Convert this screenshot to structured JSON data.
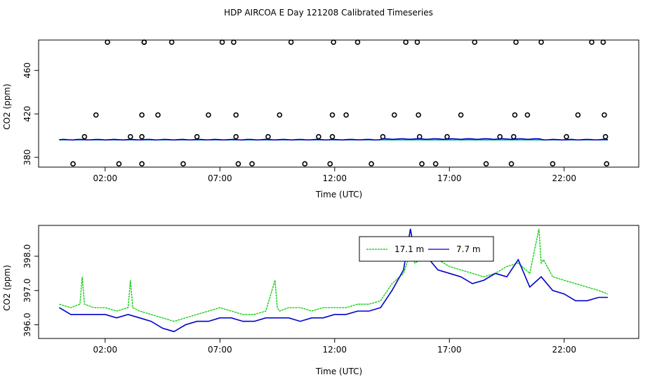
{
  "title": "HDP AIRCOA E  Day 121208  Calibrated Timeseries",
  "chart_data": [
    {
      "type": "scatter+line",
      "xlabel": "Time (UTC)",
      "ylabel": "CO2 (ppm)",
      "xticks": [
        "02:00",
        "07:00",
        "12:00",
        "17:00",
        "22:00"
      ],
      "xtick_values": [
        2,
        7,
        12,
        17,
        22
      ],
      "yticks": [
        "380",
        "420",
        "460"
      ],
      "ytick_values": [
        380,
        420,
        460
      ],
      "xlim": [
        -0.9,
        25.25
      ],
      "ylim": [
        371,
        488
      ],
      "grid": false,
      "calibration_points": {
        "x": [
          0.6,
          1.1,
          1.6,
          2.1,
          2.6,
          3.1,
          3.6,
          3.6,
          3.6,
          3.7,
          3.7,
          4.3,
          4.9,
          5.4,
          6.0,
          6.5,
          7.1,
          7.6,
          7.7,
          7.7,
          7.8,
          8.4,
          9.1,
          9.6,
          10.1,
          10.7,
          11.3,
          11.8,
          11.9,
          11.9,
          11.95,
          12.5,
          13.0,
          13.6,
          14.1,
          14.6,
          15.1,
          15.6,
          15.65,
          15.7,
          15.8,
          16.4,
          16.9,
          17.5,
          18.1,
          18.6,
          19.2,
          19.7,
          19.8,
          19.85,
          19.9,
          20.4,
          21.0,
          21.5,
          22.1,
          22.6,
          23.2,
          23.7,
          23.75,
          23.8,
          23.85
        ],
        "y": [
          374,
          399,
          419,
          486,
          374,
          399,
          374,
          399,
          419,
          486,
          486,
          419,
          486,
          374,
          399,
          419,
          486,
          486,
          419,
          399,
          374,
          374,
          399,
          419,
          486,
          374,
          399,
          374,
          399,
          419,
          486,
          419,
          486,
          374,
          399,
          419,
          486,
          486,
          419,
          399,
          374,
          374,
          399,
          419,
          486,
          374,
          399,
          374,
          399,
          419,
          486,
          419,
          486,
          374,
          399,
          419,
          486,
          486,
          419,
          399,
          374
        ]
      },
      "baseline_level": 396.3
    },
    {
      "type": "line",
      "xlabel": "Time (UTC)",
      "ylabel": "CO2 (ppm)",
      "xticks": [
        "02:00",
        "07:00",
        "12:00",
        "17:00",
        "22:00"
      ],
      "xtick_values": [
        2,
        7,
        12,
        17,
        22
      ],
      "yticks": [
        "396.0",
        "397.0",
        "398.0"
      ],
      "ytick_values": [
        396,
        397,
        398
      ],
      "xlim": [
        -0.9,
        25.25
      ],
      "ylim": [
        395.6,
        398.9
      ],
      "grid": false,
      "legend_position": "top-right",
      "series": [
        {
          "name": "17.1 m",
          "color": "#00cc00",
          "x": [
            0,
            0.5,
            0.9,
            1.0,
            1.1,
            1.5,
            2.0,
            2.5,
            3.0,
            3.1,
            3.2,
            3.5,
            4.0,
            4.5,
            5.0,
            5.5,
            6.0,
            6.5,
            7.0,
            7.5,
            8.0,
            8.5,
            9.0,
            9.4,
            9.5,
            9.6,
            10.0,
            10.5,
            11.0,
            11.5,
            12.0,
            12.5,
            13.0,
            13.5,
            14.0,
            14.5,
            15.0,
            15.3,
            15.5,
            16.0,
            16.5,
            17.0,
            17.5,
            18.0,
            18.5,
            19.0,
            19.5,
            20.0,
            20.5,
            20.9,
            21.0,
            21.1,
            21.5,
            22.0,
            22.5,
            23.0,
            23.5,
            23.9
          ],
          "values": [
            396.6,
            396.5,
            396.6,
            397.4,
            396.6,
            396.5,
            396.5,
            396.4,
            396.5,
            397.3,
            396.5,
            396.4,
            396.3,
            396.2,
            396.1,
            396.2,
            396.3,
            396.4,
            396.5,
            396.4,
            396.3,
            396.3,
            396.4,
            397.3,
            396.5,
            396.4,
            396.5,
            396.5,
            396.4,
            396.5,
            396.5,
            396.5,
            396.6,
            396.6,
            396.7,
            397.2,
            397.5,
            398.1,
            397.8,
            398.0,
            397.9,
            397.7,
            397.6,
            397.5,
            397.4,
            397.5,
            397.7,
            397.8,
            397.5,
            398.8,
            397.8,
            397.9,
            397.4,
            397.3,
            397.2,
            397.1,
            397.0,
            396.9
          ]
        },
        {
          "name": "7.7 m",
          "color": "#0000cc",
          "x": [
            0,
            0.5,
            1.0,
            1.5,
            2.0,
            2.5,
            3.0,
            3.5,
            4.0,
            4.5,
            5.0,
            5.5,
            6.0,
            6.5,
            7.0,
            7.5,
            8.0,
            8.5,
            9.0,
            9.5,
            10.0,
            10.5,
            11.0,
            11.5,
            12.0,
            12.5,
            13.0,
            13.5,
            14.0,
            14.5,
            15.0,
            15.3,
            15.5,
            16.0,
            16.5,
            17.0,
            17.5,
            18.0,
            18.5,
            19.0,
            19.5,
            20.0,
            20.5,
            21.0,
            21.5,
            22.0,
            22.5,
            23.0,
            23.5,
            23.9
          ],
          "values": [
            396.5,
            396.3,
            396.3,
            396.3,
            396.3,
            396.2,
            396.3,
            396.2,
            396.1,
            395.9,
            395.8,
            396.0,
            396.1,
            396.1,
            396.2,
            396.2,
            396.1,
            396.1,
            396.2,
            396.2,
            396.2,
            396.1,
            396.2,
            396.2,
            396.3,
            396.3,
            396.4,
            396.4,
            396.5,
            397.0,
            397.6,
            398.8,
            398.0,
            398.0,
            397.6,
            397.5,
            397.4,
            397.2,
            397.3,
            397.5,
            397.4,
            397.9,
            397.1,
            397.4,
            397.0,
            396.9,
            396.7,
            396.7,
            396.8,
            396.8
          ]
        }
      ]
    }
  ]
}
